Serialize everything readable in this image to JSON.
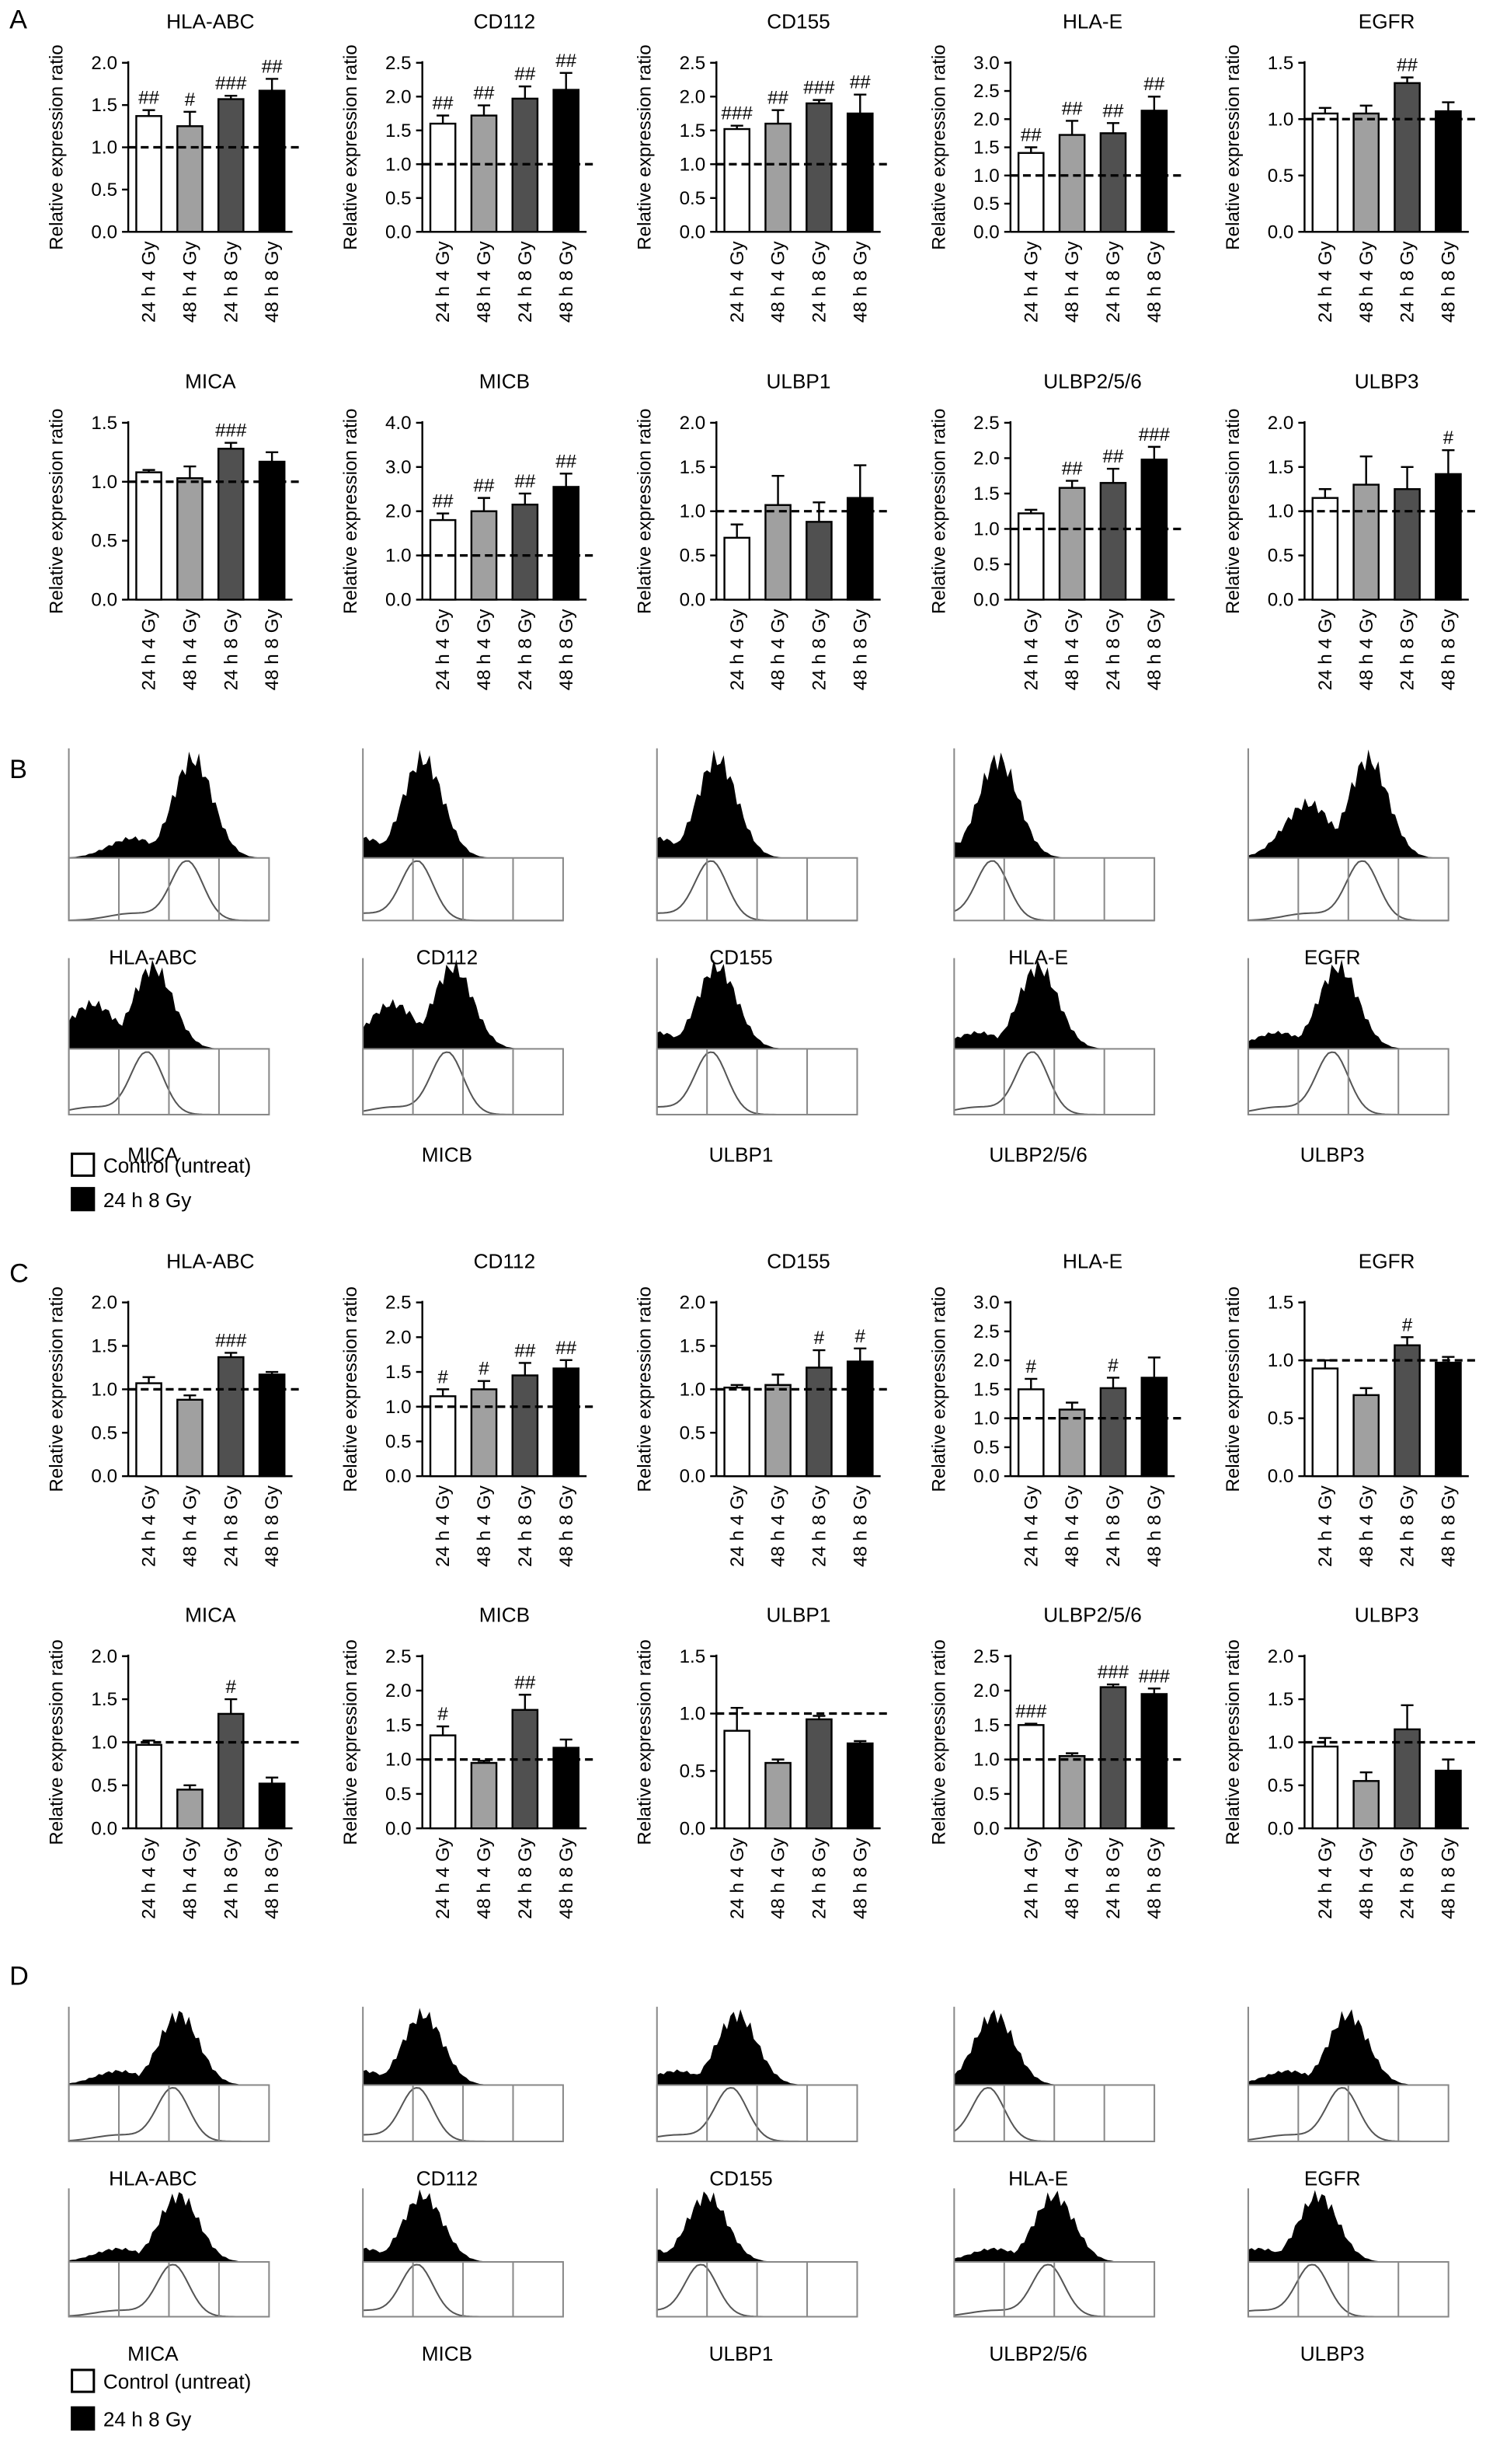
{
  "panel_labels": [
    "A",
    "B",
    "C",
    "D"
  ],
  "chart_data": [
    {
      "type": "bar",
      "title": "HLA-ABC",
      "ylabel": "Relative expression ratio",
      "categories": [
        "24 h 4 Gy",
        "48 h 4 Gy",
        "24 h 8 Gy",
        "48 h 8 Gy"
      ],
      "values": [
        1.37,
        1.25,
        1.57,
        1.67
      ],
      "errors": [
        0.07,
        0.17,
        0.04,
        0.14
      ],
      "annotations": [
        "##",
        "#",
        "###",
        "##"
      ],
      "colors": [
        "#ffffff",
        "#a0a0a0",
        "#505050",
        "#000000"
      ],
      "ylim": [
        0,
        2
      ],
      "yticks": [
        {
          "value": 0,
          "label": "0.0"
        },
        0.5,
        {
          "value": 1,
          "label": "1.0"
        },
        1.5,
        {
          "value": 2,
          "label": "2.0"
        }
      ],
      "reference_line": 1
    },
    {
      "type": "bar",
      "title": "CD112",
      "ylabel": "Relative expression ratio",
      "categories": [
        "24 h 4 Gy",
        "48 h 4 Gy",
        "24 h 8 Gy",
        "48 h 8 Gy"
      ],
      "values": [
        1.6,
        1.72,
        1.97,
        2.1
      ],
      "errors": [
        0.12,
        0.15,
        0.18,
        0.25
      ],
      "annotations": [
        "##",
        "##",
        "##",
        "##"
      ],
      "colors": [
        "#ffffff",
        "#a0a0a0",
        "#505050",
        "#000000"
      ],
      "ylim": [
        0,
        2.5
      ],
      "yticks": [
        {
          "value": 0,
          "label": "0.0"
        },
        0.5,
        {
          "value": 1,
          "label": "1.0"
        },
        1.5,
        {
          "value": 2,
          "label": "2.0"
        },
        2.5
      ],
      "reference_line": 1
    },
    {
      "type": "bar",
      "title": "CD155",
      "ylabel": "Relative expression ratio",
      "categories": [
        "24 h 4 Gy",
        "48 h 4 Gy",
        "24 h 8 Gy",
        "48 h 8 Gy"
      ],
      "values": [
        1.52,
        1.6,
        1.9,
        1.75
      ],
      "errors": [
        0.05,
        0.2,
        0.05,
        0.28
      ],
      "annotations": [
        "###",
        "##",
        "###",
        "##"
      ],
      "colors": [
        "#ffffff",
        "#a0a0a0",
        "#505050",
        "#000000"
      ],
      "ylim": [
        0,
        2.5
      ],
      "yticks": [
        {
          "value": 0,
          "label": "0.0"
        },
        0.5,
        {
          "value": 1,
          "label": "1.0"
        },
        1.5,
        {
          "value": 2,
          "label": "2.0"
        },
        2.5
      ],
      "reference_line": 1
    },
    {
      "type": "bar",
      "title": "HLA-E",
      "ylabel": "Relative expression ratio",
      "categories": [
        "24 h 4 Gy",
        "48 h 4 Gy",
        "24 h 8 Gy",
        "48 h 8 Gy"
      ],
      "values": [
        1.4,
        1.72,
        1.75,
        2.15
      ],
      "errors": [
        0.1,
        0.25,
        0.18,
        0.25
      ],
      "annotations": [
        "##",
        "##",
        "##",
        "##"
      ],
      "colors": [
        "#ffffff",
        "#a0a0a0",
        "#505050",
        "#000000"
      ],
      "ylim": [
        0,
        3
      ],
      "yticks": [
        {
          "value": 0,
          "label": "0.0"
        },
        0.5,
        {
          "value": 1,
          "label": "1.0"
        },
        1.5,
        {
          "value": 2,
          "label": "2.0"
        },
        2.5,
        {
          "value": 3,
          "label": "3.0"
        }
      ],
      "reference_line": 1
    },
    {
      "type": "bar",
      "title": "EGFR",
      "ylabel": "Relative expression ratio",
      "categories": [
        "24 h 4 Gy",
        "48 h 4 Gy",
        "24 h 8 Gy",
        "48 h 8 Gy"
      ],
      "values": [
        1.05,
        1.05,
        1.32,
        1.07
      ],
      "errors": [
        0.05,
        0.07,
        0.05,
        0.08
      ],
      "annotations": [
        null,
        null,
        "##",
        null
      ],
      "colors": [
        "#ffffff",
        "#a0a0a0",
        "#505050",
        "#000000"
      ],
      "ylim": [
        0,
        1.5
      ],
      "yticks": [
        {
          "value": 0,
          "label": "0.0"
        },
        0.5,
        {
          "value": 1,
          "label": "1.0"
        },
        1.5
      ],
      "reference_line": 1
    },
    {
      "type": "bar",
      "title": "MICA",
      "ylabel": "Relative expression ratio",
      "categories": [
        "24 h 4 Gy",
        "48 h 4 Gy",
        "24 h 8 Gy",
        "48 h 8 Gy"
      ],
      "values": [
        1.08,
        1.03,
        1.28,
        1.17
      ],
      "errors": [
        0.02,
        0.1,
        0.05,
        0.08
      ],
      "annotations": [
        null,
        null,
        "###",
        null
      ],
      "colors": [
        "#ffffff",
        "#a0a0a0",
        "#505050",
        "#000000"
      ],
      "ylim": [
        0,
        1.5
      ],
      "yticks": [
        {
          "value": 0,
          "label": "0.0"
        },
        0.5,
        {
          "value": 1,
          "label": "1.0"
        },
        1.5
      ],
      "reference_line": 1
    },
    {
      "type": "bar",
      "title": "MICB",
      "ylabel": "Relative expression ratio",
      "categories": [
        "24 h 4 Gy",
        "48 h 4 Gy",
        "24 h 8 Gy",
        "48 h 8 Gy"
      ],
      "values": [
        1.8,
        2.0,
        2.15,
        2.55
      ],
      "errors": [
        0.15,
        0.3,
        0.25,
        0.3
      ],
      "annotations": [
        "##",
        "##",
        "##",
        "##"
      ],
      "colors": [
        "#ffffff",
        "#a0a0a0",
        "#505050",
        "#000000"
      ],
      "ylim": [
        0,
        4
      ],
      "yticks": [
        {
          "value": 0,
          "label": "0.0"
        },
        {
          "value": 1,
          "label": "1.0"
        },
        {
          "value": 2,
          "label": "2.0"
        },
        {
          "value": 3,
          "label": "3.0"
        },
        {
          "value": 4,
          "label": "4.0"
        }
      ],
      "reference_line": 1
    },
    {
      "type": "bar",
      "title": "ULBP1",
      "ylabel": "Relative expression ratio",
      "categories": [
        "24 h 4 Gy",
        "48 h 4 Gy",
        "24 h 8 Gy",
        "48 h 8 Gy"
      ],
      "values": [
        0.7,
        1.07,
        0.88,
        1.15
      ],
      "errors": [
        0.15,
        0.33,
        0.22,
        0.37
      ],
      "annotations": [
        null,
        null,
        null,
        null
      ],
      "colors": [
        "#ffffff",
        "#a0a0a0",
        "#505050",
        "#000000"
      ],
      "ylim": [
        0,
        2
      ],
      "yticks": [
        {
          "value": 0,
          "label": "0.0"
        },
        0.5,
        {
          "value": 1,
          "label": "1.0"
        },
        1.5,
        {
          "value": 2,
          "label": "2.0"
        }
      ],
      "reference_line": 1
    },
    {
      "type": "bar",
      "title": "ULBP2/5/6",
      "ylabel": "Relative expression ratio",
      "categories": [
        "24 h 4 Gy",
        "48 h 4 Gy",
        "24 h 8 Gy",
        "48 h 8 Gy"
      ],
      "values": [
        1.22,
        1.58,
        1.65,
        1.98
      ],
      "errors": [
        0.05,
        0.1,
        0.2,
        0.18
      ],
      "annotations": [
        null,
        "##",
        "##",
        "###"
      ],
      "colors": [
        "#ffffff",
        "#a0a0a0",
        "#505050",
        "#000000"
      ],
      "ylim": [
        0,
        2.5
      ],
      "yticks": [
        {
          "value": 0,
          "label": "0.0"
        },
        0.5,
        {
          "value": 1,
          "label": "1.0"
        },
        1.5,
        {
          "value": 2,
          "label": "2.0"
        },
        2.5
      ],
      "reference_line": 1
    },
    {
      "type": "bar",
      "title": "ULBP3",
      "ylabel": "Relative expression ratio",
      "categories": [
        "24 h 4 Gy",
        "48 h 4 Gy",
        "24 h 8 Gy",
        "48 h 8 Gy"
      ],
      "values": [
        1.15,
        1.3,
        1.25,
        1.42
      ],
      "errors": [
        0.1,
        0.32,
        0.25,
        0.27
      ],
      "annotations": [
        null,
        null,
        null,
        "#"
      ],
      "colors": [
        "#ffffff",
        "#a0a0a0",
        "#505050",
        "#000000"
      ],
      "ylim": [
        0,
        2
      ],
      "yticks": [
        {
          "value": 0,
          "label": "0.0"
        },
        0.5,
        {
          "value": 1,
          "label": "1.0"
        },
        1.5,
        {
          "value": 2,
          "label": "2.0"
        }
      ],
      "reference_line": 1
    },
    {
      "type": "bar",
      "title": "HLA-ABC",
      "ylabel": "Relative expression ratio",
      "categories": [
        "24 h 4 Gy",
        "48 h 4 Gy",
        "24 h 8 Gy",
        "48 h 8 Gy"
      ],
      "values": [
        1.07,
        0.88,
        1.37,
        1.17
      ],
      "errors": [
        0.07,
        0.05,
        0.05,
        0.03
      ],
      "annotations": [
        null,
        null,
        "###",
        null
      ],
      "colors": [
        "#ffffff",
        "#a0a0a0",
        "#505050",
        "#000000"
      ],
      "ylim": [
        0,
        2
      ],
      "yticks": [
        {
          "value": 0,
          "label": "0.0"
        },
        0.5,
        {
          "value": 1,
          "label": "1.0"
        },
        1.5,
        {
          "value": 2,
          "label": "2.0"
        }
      ],
      "reference_line": 1
    },
    {
      "type": "bar",
      "title": "CD112",
      "ylabel": "Relative expression ratio",
      "categories": [
        "24 h 4 Gy",
        "48 h 4 Gy",
        "24 h 8 Gy",
        "48 h 8 Gy"
      ],
      "values": [
        1.15,
        1.25,
        1.45,
        1.55
      ],
      "errors": [
        0.1,
        0.12,
        0.18,
        0.12
      ],
      "annotations": [
        "#",
        "#",
        "##",
        "##"
      ],
      "colors": [
        "#ffffff",
        "#a0a0a0",
        "#505050",
        "#000000"
      ],
      "ylim": [
        0,
        2.5
      ],
      "yticks": [
        {
          "value": 0,
          "label": "0.0"
        },
        0.5,
        {
          "value": 1,
          "label": "1.0"
        },
        1.5,
        {
          "value": 2,
          "label": "2.0"
        },
        2.5
      ],
      "reference_line": 1
    },
    {
      "type": "bar",
      "title": "CD155",
      "ylabel": "Relative expression ratio",
      "categories": [
        "24 h 4 Gy",
        "48 h 4 Gy",
        "24 h 8 Gy",
        "48 h 8 Gy"
      ],
      "values": [
        1.02,
        1.05,
        1.25,
        1.32
      ],
      "errors": [
        0.03,
        0.12,
        0.2,
        0.15
      ],
      "annotations": [
        null,
        null,
        "#",
        "#"
      ],
      "colors": [
        "#ffffff",
        "#a0a0a0",
        "#505050",
        "#000000"
      ],
      "ylim": [
        0,
        2
      ],
      "yticks": [
        {
          "value": 0,
          "label": "0.0"
        },
        0.5,
        {
          "value": 1,
          "label": "1.0"
        },
        1.5,
        {
          "value": 2,
          "label": "2.0"
        }
      ],
      "reference_line": 1
    },
    {
      "type": "bar",
      "title": "HLA-E",
      "ylabel": "Relative expression ratio",
      "categories": [
        "24 h 4 Gy",
        "48 h 4 Gy",
        "24 h 8 Gy",
        "48 h 8 Gy"
      ],
      "values": [
        1.5,
        1.15,
        1.52,
        1.7
      ],
      "errors": [
        0.18,
        0.12,
        0.18,
        0.35
      ],
      "annotations": [
        "#",
        null,
        "#",
        null
      ],
      "colors": [
        "#ffffff",
        "#a0a0a0",
        "#505050",
        "#000000"
      ],
      "ylim": [
        0,
        3
      ],
      "yticks": [
        {
          "value": 0,
          "label": "0.0"
        },
        0.5,
        {
          "value": 1,
          "label": "1.0"
        },
        1.5,
        {
          "value": 2,
          "label": "2.0"
        },
        2.5,
        {
          "value": 3,
          "label": "3.0"
        }
      ],
      "reference_line": 1
    },
    {
      "type": "bar",
      "title": "EGFR",
      "ylabel": "Relative expression ratio",
      "categories": [
        "24 h 4 Gy",
        "48 h 4 Gy",
        "24 h 8 Gy",
        "48 h 8 Gy"
      ],
      "values": [
        0.93,
        0.7,
        1.13,
        0.98
      ],
      "errors": [
        0.07,
        0.06,
        0.07,
        0.05
      ],
      "annotations": [
        null,
        null,
        "#",
        null
      ],
      "colors": [
        "#ffffff",
        "#a0a0a0",
        "#505050",
        "#000000"
      ],
      "ylim": [
        0,
        1.5
      ],
      "yticks": [
        {
          "value": 0,
          "label": "0.0"
        },
        0.5,
        {
          "value": 1,
          "label": "1.0"
        },
        1.5
      ],
      "reference_line": 1
    },
    {
      "type": "bar",
      "title": "MICA",
      "ylabel": "Relative expression ratio",
      "categories": [
        "24 h 4 Gy",
        "48 h 4 Gy",
        "24 h 8 Gy",
        "48 h 8 Gy"
      ],
      "values": [
        0.97,
        0.45,
        1.33,
        0.52
      ],
      "errors": [
        0.05,
        0.05,
        0.17,
        0.07
      ],
      "annotations": [
        null,
        null,
        "#",
        null
      ],
      "colors": [
        "#ffffff",
        "#a0a0a0",
        "#505050",
        "#000000"
      ],
      "ylim": [
        0,
        2
      ],
      "yticks": [
        {
          "value": 0,
          "label": "0.0"
        },
        0.5,
        {
          "value": 1,
          "label": "1.0"
        },
        1.5,
        {
          "value": 2,
          "label": "2.0"
        }
      ],
      "reference_line": 1
    },
    {
      "type": "bar",
      "title": "MICB",
      "ylabel": "Relative expression ratio",
      "categories": [
        "24 h 4 Gy",
        "48 h 4 Gy",
        "24 h 8 Gy",
        "48 h 8 Gy"
      ],
      "values": [
        1.35,
        0.95,
        1.72,
        1.17
      ],
      "errors": [
        0.13,
        0.03,
        0.22,
        0.12
      ],
      "annotations": [
        "#",
        null,
        "##",
        null
      ],
      "colors": [
        "#ffffff",
        "#a0a0a0",
        "#505050",
        "#000000"
      ],
      "ylim": [
        0,
        2.5
      ],
      "yticks": [
        {
          "value": 0,
          "label": "0.0"
        },
        0.5,
        {
          "value": 1,
          "label": "1.0"
        },
        1.5,
        {
          "value": 2,
          "label": "2.0"
        },
        2.5
      ],
      "reference_line": 1
    },
    {
      "type": "bar",
      "title": "ULBP1",
      "ylabel": "Relative expression ratio",
      "categories": [
        "24 h 4 Gy",
        "48 h 4 Gy",
        "24 h 8 Gy",
        "48 h 8 Gy"
      ],
      "values": [
        0.85,
        0.57,
        0.95,
        0.74
      ],
      "errors": [
        0.2,
        0.03,
        0.03,
        0.02
      ],
      "annotations": [
        null,
        null,
        null,
        null
      ],
      "colors": [
        "#ffffff",
        "#a0a0a0",
        "#505050",
        "#000000"
      ],
      "ylim": [
        0,
        1.5
      ],
      "yticks": [
        {
          "value": 0,
          "label": "0.0"
        },
        0.5,
        {
          "value": 1,
          "label": "1.0"
        },
        1.5
      ],
      "reference_line": 1
    },
    {
      "type": "bar",
      "title": "ULBP2/5/6",
      "ylabel": "Relative expression ratio",
      "categories": [
        "24 h 4 Gy",
        "48 h 4 Gy",
        "24 h 8 Gy",
        "48 h 8 Gy"
      ],
      "values": [
        1.5,
        1.05,
        2.05,
        1.95
      ],
      "errors": [
        0.02,
        0.04,
        0.04,
        0.08
      ],
      "annotations": [
        "###",
        null,
        "###",
        "###"
      ],
      "colors": [
        "#ffffff",
        "#a0a0a0",
        "#505050",
        "#000000"
      ],
      "ylim": [
        0,
        2.5
      ],
      "yticks": [
        {
          "value": 0,
          "label": "0.0"
        },
        0.5,
        {
          "value": 1,
          "label": "1.0"
        },
        1.5,
        {
          "value": 2,
          "label": "2.0"
        },
        2.5
      ],
      "reference_line": 1
    },
    {
      "type": "bar",
      "title": "ULBP3",
      "ylabel": "Relative expression ratio",
      "categories": [
        "24 h 4 Gy",
        "48 h 4 Gy",
        "24 h 8 Gy",
        "48 h 8 Gy"
      ],
      "values": [
        0.95,
        0.55,
        1.15,
        0.67
      ],
      "errors": [
        0.1,
        0.1,
        0.28,
        0.13
      ],
      "annotations": [
        null,
        null,
        null,
        null
      ],
      "colors": [
        "#ffffff",
        "#a0a0a0",
        "#505050",
        "#000000"
      ],
      "ylim": [
        0,
        2
      ],
      "yticks": [
        {
          "value": 0,
          "label": "0.0"
        },
        0.5,
        {
          "value": 1,
          "label": "1.0"
        },
        1.5,
        {
          "value": 2,
          "label": "2.0"
        }
      ],
      "reference_line": 1
    }
  ],
  "flow_panels": [
    {
      "titles": [
        "HLA-ABC",
        "CD112",
        "CD155",
        "HLA-E",
        "EGFR",
        "MICA",
        "MICB",
        "ULBP1",
        "ULBP2/5/6",
        "ULBP3"
      ],
      "legend": [
        "Control (untreat)",
        "24 h 8 Gy"
      ]
    },
    {
      "titles": [
        "HLA-ABC",
        "CD112",
        "CD155",
        "HLA-E",
        "EGFR",
        "MICA",
        "MICB",
        "ULBP1",
        "ULBP2/5/6",
        "ULBP3"
      ],
      "legend": [
        "Control (untreat)",
        "24 h 8 Gy"
      ]
    }
  ]
}
